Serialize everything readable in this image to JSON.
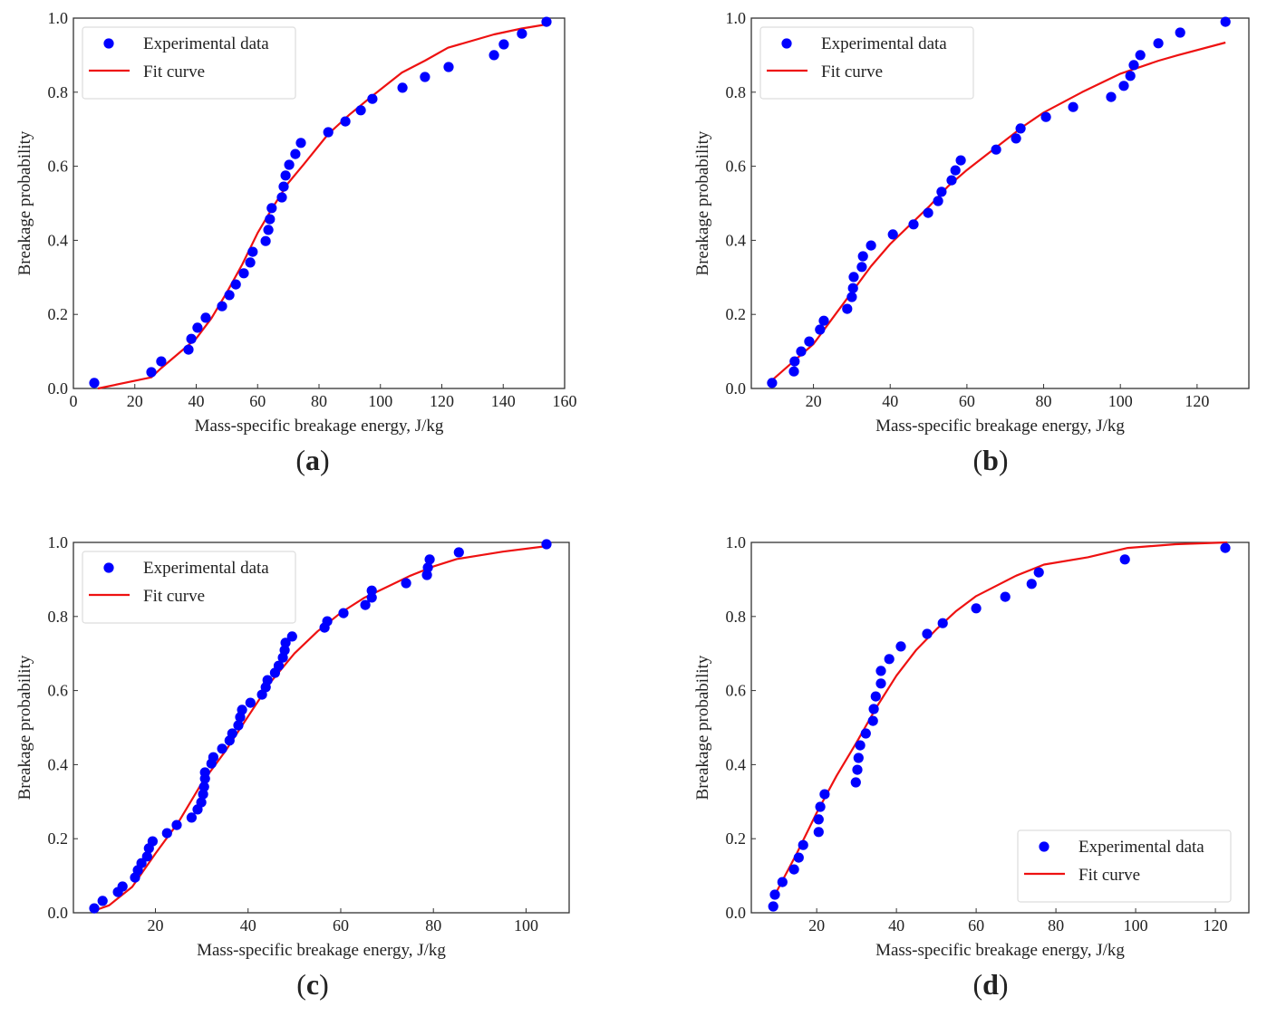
{
  "figure": {
    "panels": [
      "a",
      "b",
      "c",
      "d"
    ]
  },
  "chart_data": [
    {
      "id": "a",
      "panel_label": "(a)",
      "panel_letter": "a",
      "type": "scatter",
      "title": "",
      "xlabel": "Mass-specific breakage energy, J/kg",
      "ylabel": "Breakage probability",
      "xlim": [
        0,
        160
      ],
      "ylim": [
        0,
        1.0
      ],
      "xticks": [
        0,
        20,
        40,
        60,
        80,
        100,
        120,
        140,
        160
      ],
      "xtick_labels": [
        "0",
        "20",
        "40",
        "60",
        "80",
        "100",
        "120",
        "140",
        "160"
      ],
      "yticks": [
        0,
        0.2,
        0.4,
        0.6,
        0.8,
        1.0
      ],
      "ytick_labels": [
        "0.0",
        "0.2",
        "0.4",
        "0.6",
        "0.8",
        "1.0"
      ],
      "grid": false,
      "legend": {
        "placement": "top-left",
        "entries": [
          "Experimental data",
          "Fit curve"
        ]
      },
      "series": [
        {
          "name": "Experimental data",
          "kind": "scatter",
          "color": "#0000ff",
          "x": [
            6.8,
            25.4,
            28.6,
            37.5,
            38.4,
            40.4,
            43.1,
            48.4,
            50.8,
            52.9,
            55.5,
            57.6,
            58.4,
            62.6,
            63.5,
            64.0,
            64.6,
            67.9,
            68.5,
            69.1,
            70.3,
            72.3,
            74.1,
            83.0,
            88.6,
            93.6,
            97.4,
            107.2,
            114.5,
            122.2,
            137.0,
            140.2,
            146.1,
            154.1
          ],
          "y": [
            0.015,
            0.044,
            0.073,
            0.105,
            0.134,
            0.164,
            0.191,
            0.222,
            0.252,
            0.281,
            0.311,
            0.34,
            0.369,
            0.398,
            0.428,
            0.457,
            0.487,
            0.516,
            0.545,
            0.575,
            0.604,
            0.633,
            0.663,
            0.692,
            0.721,
            0.751,
            0.782,
            0.812,
            0.841,
            0.868,
            0.9,
            0.929,
            0.958,
            0.99
          ]
        },
        {
          "name": "Fit curve",
          "kind": "line",
          "color": "#ee1111",
          "x": [
            8,
            25.4,
            28.6,
            35,
            40,
            45,
            50,
            55,
            60,
            65,
            70,
            75,
            83,
            90,
            97.4,
            107,
            114.5,
            122,
            137,
            146,
            154
          ],
          "y": [
            0.0,
            0.03,
            0.055,
            0.1,
            0.135,
            0.19,
            0.26,
            0.335,
            0.42,
            0.49,
            0.555,
            0.605,
            0.687,
            0.74,
            0.79,
            0.853,
            0.885,
            0.92,
            0.956,
            0.972,
            0.983
          ]
        }
      ]
    },
    {
      "id": "b",
      "panel_label": "(b)",
      "panel_letter": "b",
      "type": "scatter",
      "title": "",
      "xlabel": "Mass-specific breakage energy, J/kg",
      "ylabel": "Breakage probability",
      "xlim": [
        3.8,
        133.5
      ],
      "ylim": [
        0,
        1.0
      ],
      "xticks": [
        20,
        40,
        60,
        80,
        100,
        120
      ],
      "xtick_labels": [
        "20",
        "40",
        "60",
        "80",
        "100",
        "120"
      ],
      "yticks": [
        0,
        0.2,
        0.4,
        0.6,
        0.8,
        1.0
      ],
      "ytick_labels": [
        "0.0",
        "0.2",
        "0.4",
        "0.6",
        "0.8",
        "1.0"
      ],
      "grid": false,
      "legend": {
        "placement": "top-left",
        "entries": [
          "Experimental data",
          "Fit curve"
        ]
      },
      "series": [
        {
          "name": "Experimental data",
          "kind": "scatter",
          "color": "#0000ff",
          "x": [
            9.2,
            14.9,
            15.1,
            16.8,
            18.9,
            21.7,
            22.7,
            28.8,
            30.0,
            30.3,
            30.5,
            32.6,
            32.9,
            35.0,
            40.7,
            46.1,
            49.9,
            52.5,
            53.4,
            56.0,
            57.0,
            58.4,
            67.6,
            72.8,
            74.0,
            80.6,
            87.7,
            97.6,
            100.9,
            102.6,
            103.5,
            105.2,
            109.9,
            115.6,
            127.4
          ],
          "y": [
            0.015,
            0.046,
            0.073,
            0.1,
            0.127,
            0.159,
            0.183,
            0.215,
            0.247,
            0.271,
            0.301,
            0.328,
            0.357,
            0.386,
            0.416,
            0.443,
            0.474,
            0.506,
            0.531,
            0.562,
            0.589,
            0.616,
            0.645,
            0.675,
            0.702,
            0.733,
            0.76,
            0.787,
            0.817,
            0.844,
            0.873,
            0.9,
            0.932,
            0.961,
            0.99
          ]
        },
        {
          "name": "Fit curve",
          "kind": "line",
          "color": "#ee1111",
          "x": [
            9.5,
            15,
            20,
            25,
            30,
            35,
            40,
            45,
            50,
            55,
            60,
            65,
            70,
            75,
            80,
            90,
            100,
            110,
            115,
            127.4
          ],
          "y": [
            0.025,
            0.075,
            0.12,
            0.19,
            0.26,
            0.33,
            0.39,
            0.44,
            0.49,
            0.545,
            0.59,
            0.63,
            0.67,
            0.71,
            0.745,
            0.8,
            0.85,
            0.885,
            0.9,
            0.934
          ]
        }
      ]
    },
    {
      "id": "c",
      "panel_label": "(c)",
      "panel_letter": "c",
      "type": "scatter",
      "title": "",
      "xlabel": "Mass-specific breakage energy, J/kg",
      "ylabel": "Breakage probability",
      "xlim": [
        2.3,
        109.3
      ],
      "ylim": [
        0,
        1.0
      ],
      "xticks": [
        20,
        40,
        60,
        80,
        100
      ],
      "xtick_labels": [
        "20",
        "40",
        "60",
        "80",
        "100"
      ],
      "yticks": [
        0,
        0.2,
        0.4,
        0.6,
        0.8,
        1.0
      ],
      "ytick_labels": [
        "0.0",
        "0.2",
        "0.4",
        "0.6",
        "0.8",
        "1.0"
      ],
      "grid": false,
      "legend": {
        "placement": "top-left",
        "entries": [
          "Experimental data",
          "Fit curve"
        ]
      },
      "series": [
        {
          "name": "Experimental data",
          "kind": "scatter",
          "color": "#0000ff",
          "x": [
            6.8,
            8.6,
            11.9,
            12.9,
            15.6,
            16.2,
            17.0,
            18.2,
            18.6,
            19.4,
            22.5,
            24.6,
            27.8,
            29.1,
            29.9,
            30.3,
            30.5,
            30.7,
            30.7,
            32.1,
            32.5,
            34.4,
            36.0,
            36.6,
            37.9,
            38.3,
            38.7,
            40.5,
            43.0,
            43.8,
            44.2,
            45.8,
            46.6,
            47.5,
            47.9,
            48.1,
            49.5,
            56.5,
            57.1,
            60.6,
            65.3,
            66.7,
            66.7,
            74.1,
            78.6,
            78.8,
            79.2,
            85.5,
            104.4
          ],
          "y": [
            0.012,
            0.032,
            0.056,
            0.071,
            0.095,
            0.115,
            0.134,
            0.152,
            0.174,
            0.193,
            0.215,
            0.237,
            0.257,
            0.279,
            0.298,
            0.32,
            0.34,
            0.362,
            0.379,
            0.403,
            0.42,
            0.443,
            0.465,
            0.484,
            0.506,
            0.528,
            0.548,
            0.567,
            0.589,
            0.609,
            0.628,
            0.648,
            0.667,
            0.689,
            0.709,
            0.729,
            0.746,
            0.77,
            0.787,
            0.809,
            0.831,
            0.851,
            0.87,
            0.89,
            0.912,
            0.932,
            0.954,
            0.973,
            0.995
          ]
        },
        {
          "name": "Fit curve",
          "kind": "line",
          "color": "#ee1111",
          "x": [
            6.6,
            10,
            15,
            20,
            25,
            30,
            35,
            40,
            45,
            50,
            55,
            60,
            65,
            70,
            75,
            80,
            85,
            90,
            95,
            104.4
          ],
          "y": [
            0.005,
            0.02,
            0.07,
            0.16,
            0.245,
            0.35,
            0.435,
            0.53,
            0.625,
            0.7,
            0.76,
            0.81,
            0.85,
            0.88,
            0.91,
            0.935,
            0.955,
            0.965,
            0.975,
            0.99
          ]
        }
      ]
    },
    {
      "id": "d",
      "panel_label": "(d)",
      "panel_letter": "d",
      "type": "scatter",
      "title": "",
      "xlabel": "Mass-specific breakage energy, J/kg",
      "ylabel": "Breakage probability",
      "xlim": [
        3.6,
        128.4
      ],
      "ylim": [
        0,
        1.0
      ],
      "xticks": [
        20,
        40,
        60,
        80,
        100,
        120
      ],
      "xtick_labels": [
        "20",
        "40",
        "60",
        "80",
        "100",
        "120"
      ],
      "yticks": [
        0,
        0.2,
        0.4,
        0.6,
        0.8,
        1.0
      ],
      "ytick_labels": [
        "0.0",
        "0.2",
        "0.4",
        "0.6",
        "0.8",
        "1.0"
      ],
      "grid": false,
      "legend": {
        "placement": "bottom-right",
        "entries": [
          "Experimental data",
          "Fit curve"
        ]
      },
      "series": [
        {
          "name": "Experimental data",
          "kind": "scatter",
          "color": "#0000ff",
          "x": [
            9.1,
            9.5,
            11.4,
            14.3,
            15.5,
            16.6,
            20.5,
            20.5,
            20.9,
            22.0,
            29.8,
            30.2,
            30.5,
            30.9,
            32.3,
            34.1,
            34.3,
            34.8,
            36.1,
            36.1,
            38.2,
            41.1,
            47.7,
            51.6,
            60.0,
            67.3,
            73.9,
            75.7,
            97.3,
            122.5
          ],
          "y": [
            0.017,
            0.049,
            0.083,
            0.117,
            0.149,
            0.183,
            0.218,
            0.252,
            0.286,
            0.32,
            0.352,
            0.386,
            0.418,
            0.452,
            0.484,
            0.518,
            0.55,
            0.584,
            0.619,
            0.653,
            0.685,
            0.719,
            0.753,
            0.782,
            0.822,
            0.853,
            0.888,
            0.919,
            0.954,
            0.985
          ]
        },
        {
          "name": "Fit curve",
          "kind": "line",
          "color": "#ee1111",
          "x": [
            9.1,
            15,
            20,
            25,
            30,
            35,
            40,
            45,
            50,
            55,
            60,
            70,
            77,
            88,
            98,
            110,
            123
          ],
          "y": [
            0.04,
            0.16,
            0.27,
            0.37,
            0.46,
            0.555,
            0.64,
            0.71,
            0.765,
            0.815,
            0.855,
            0.91,
            0.94,
            0.96,
            0.985,
            0.995,
            1.0
          ]
        }
      ]
    }
  ]
}
